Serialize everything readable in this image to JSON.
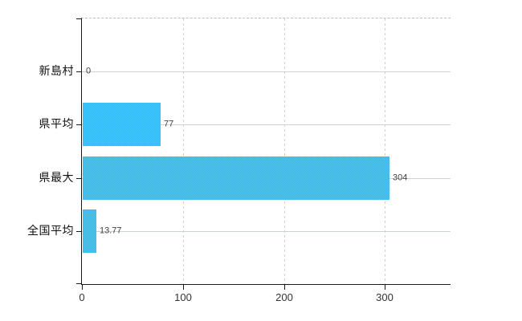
{
  "chart_data": {
    "type": "bar",
    "orientation": "horizontal",
    "title": "",
    "xlabel": "",
    "ylabel": "",
    "categories": [
      "新島村",
      "県平均",
      "県最大",
      "全国平均"
    ],
    "values": [
      0,
      77,
      304,
      13.77
    ],
    "value_labels": [
      "0",
      "77",
      "304",
      "13.77"
    ],
    "x_ticks": [
      0,
      100,
      200,
      300
    ],
    "x_tick_labels": [
      "0",
      "100",
      "200",
      "300"
    ],
    "xlim": [
      0,
      365
    ],
    "grid": true,
    "legend": "none",
    "colors": {
      "bar": "#3cbef0",
      "bar_dither_dark": "#2db9f1",
      "bar_dither_light": "#51c5ee",
      "axis": "#1a1a1a",
      "h_gridline": "#ccd5cb",
      "v_gridline": "#d5cdd5",
      "top_border_dash": "#bcbcbc",
      "category_text": "#111111",
      "value_text": "#3f3f3f",
      "tick_text": "#333333",
      "background": "#ffffff"
    }
  }
}
